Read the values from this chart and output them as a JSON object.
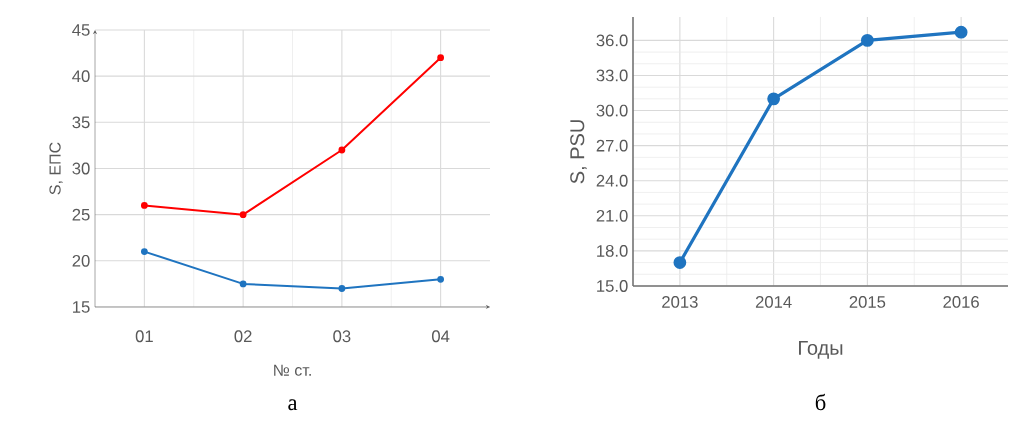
{
  "chart_data": [
    {
      "type": "line",
      "categories": [
        "01",
        "02",
        "03",
        "04"
      ],
      "xlabel": "№ ст.",
      "ylabel": "S, ЕПС",
      "ylim": [
        15,
        45
      ],
      "yticks": [
        15,
        20,
        25,
        30,
        35,
        40,
        45
      ],
      "grid": true,
      "marker": "circle",
      "line_style": "solid",
      "annotations": [
        "а"
      ],
      "series": [
        {
          "color": "#ff0000",
          "values": [
            26,
            25,
            32,
            42
          ]
        },
        {
          "color": "#1f74c0",
          "values": [
            21,
            17.5,
            17,
            18
          ]
        }
      ]
    },
    {
      "type": "line",
      "categories": [
        "2013",
        "2014",
        "2015",
        "2016"
      ],
      "xlabel": "Годы",
      "ylabel": "S, PSU",
      "ylim": [
        15,
        38
      ],
      "yticks": [
        {
          "value": 15,
          "label": "15.0"
        },
        {
          "value": 18,
          "label": "18.0"
        },
        {
          "value": 21,
          "label": "21.0"
        },
        {
          "value": 24,
          "label": "24.0"
        },
        {
          "value": 27,
          "label": "27.0"
        },
        {
          "value": 30,
          "label": "30.0"
        },
        {
          "value": 33,
          "label": "33.0"
        },
        {
          "value": 36,
          "label": "36.0"
        }
      ],
      "grid": true,
      "marker": "circle",
      "line_style": "solid",
      "annotations": [
        "б"
      ],
      "series": [
        {
          "color": "#1f74c0",
          "values": [
            17.0,
            31.0,
            36.0,
            36.7
          ]
        }
      ]
    }
  ]
}
